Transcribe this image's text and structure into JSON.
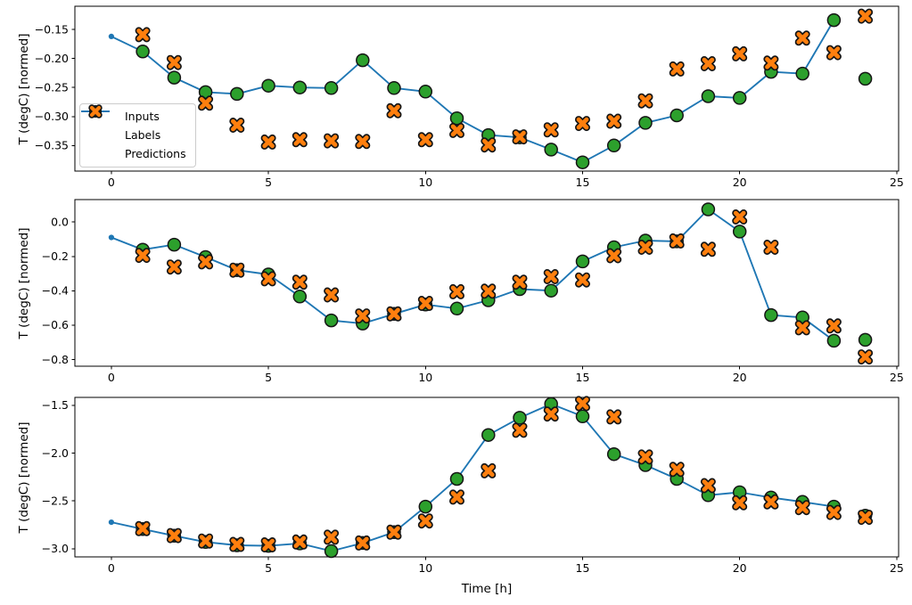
{
  "figure": {
    "background": "#ffffff",
    "xlabel": "Time [h]",
    "xlim": [
      -1.16,
      25.06
    ],
    "x_ticks": [
      0,
      5,
      10,
      15,
      20,
      25
    ],
    "x_tick_labels": [
      "0",
      "5",
      "10",
      "15",
      "20",
      "25"
    ],
    "text_color": "#000000",
    "spine_color": "#000000"
  },
  "legend": {
    "location": "center-left-inside-top-subplot",
    "items": [
      {
        "label": "Inputs",
        "marker": "line-with-dot",
        "color": "#1f77b4"
      },
      {
        "label": "Labels",
        "marker": "filled-circle",
        "color": "#2ca02c",
        "edge_color": "#151515"
      },
      {
        "label": "Predictions",
        "marker": "thick-x",
        "color": "#ff7f0e",
        "edge_color": "#151515"
      }
    ]
  },
  "chart_data": [
    {
      "type": "line",
      "subplot": 1,
      "ylabel": "T (degC) [normed]",
      "ylim": [
        -0.394,
        -0.11
      ],
      "y_ticks": [
        -0.15,
        -0.2,
        -0.25,
        -0.3,
        -0.35
      ],
      "y_tick_labels": [
        "−0.15",
        "−0.20",
        "−0.25",
        "−0.30",
        "−0.35"
      ],
      "series": [
        {
          "name": "Inputs",
          "style": "line+dot",
          "color": "#1f77b4",
          "x": [
            0,
            1,
            2,
            3,
            4,
            5,
            6,
            7,
            8,
            9,
            10,
            11,
            12,
            13,
            14,
            15,
            16,
            17,
            18,
            19,
            20,
            21,
            22,
            23
          ],
          "y": [
            -0.162,
            -0.188,
            -0.233,
            -0.258,
            -0.261,
            -0.247,
            -0.25,
            -0.251,
            -0.203,
            -0.251,
            -0.257,
            -0.303,
            -0.332,
            -0.336,
            -0.357,
            -0.379,
            -0.35,
            -0.311,
            -0.298,
            -0.265,
            -0.268,
            -0.223,
            -0.226,
            -0.134
          ]
        },
        {
          "name": "Labels",
          "style": "scatter-circle",
          "color": "#2ca02c",
          "x": [
            1,
            2,
            3,
            4,
            5,
            6,
            7,
            8,
            9,
            10,
            11,
            12,
            13,
            14,
            15,
            16,
            17,
            18,
            19,
            20,
            21,
            22,
            23,
            24
          ],
          "y": [
            -0.188,
            -0.233,
            -0.258,
            -0.261,
            -0.247,
            -0.25,
            -0.251,
            -0.203,
            -0.251,
            -0.257,
            -0.303,
            -0.332,
            -0.336,
            -0.357,
            -0.379,
            -0.35,
            -0.311,
            -0.298,
            -0.265,
            -0.268,
            -0.223,
            -0.226,
            -0.134,
            -0.235
          ]
        },
        {
          "name": "Predictions",
          "style": "scatter-x",
          "color": "#ff7f0e",
          "x": [
            1,
            2,
            3,
            4,
            5,
            6,
            7,
            8,
            9,
            10,
            11,
            12,
            13,
            14,
            15,
            16,
            17,
            18,
            19,
            20,
            21,
            22,
            23,
            24
          ],
          "y": [
            -0.159,
            -0.207,
            -0.277,
            -0.315,
            -0.344,
            -0.34,
            -0.342,
            -0.343,
            -0.29,
            -0.34,
            -0.324,
            -0.349,
            -0.335,
            -0.323,
            -0.312,
            -0.308,
            -0.273,
            -0.218,
            -0.209,
            -0.192,
            -0.208,
            -0.165,
            -0.19,
            -0.127
          ]
        }
      ]
    },
    {
      "type": "line",
      "subplot": 2,
      "ylabel": "T (degC) [normed]",
      "ylim": [
        -0.838,
        0.13
      ],
      "y_ticks": [
        0.0,
        -0.2,
        -0.4,
        -0.6,
        -0.8
      ],
      "y_tick_labels": [
        "0.0",
        "−0.2",
        "−0.4",
        "−0.6",
        "−0.8"
      ],
      "series": [
        {
          "name": "Inputs",
          "style": "line+dot",
          "color": "#1f77b4",
          "x": [
            0,
            1,
            2,
            3,
            4,
            5,
            6,
            7,
            8,
            9,
            10,
            11,
            12,
            13,
            14,
            15,
            16,
            17,
            18,
            19,
            20,
            21,
            22,
            23
          ],
          "y": [
            -0.09,
            -0.161,
            -0.132,
            -0.204,
            -0.28,
            -0.305,
            -0.433,
            -0.572,
            -0.59,
            -0.534,
            -0.48,
            -0.503,
            -0.455,
            -0.39,
            -0.399,
            -0.229,
            -0.147,
            -0.108,
            -0.113,
            0.073,
            -0.056,
            -0.541,
            -0.555,
            -0.69
          ]
        },
        {
          "name": "Labels",
          "style": "scatter-circle",
          "color": "#2ca02c",
          "x": [
            1,
            2,
            3,
            4,
            5,
            6,
            7,
            8,
            9,
            10,
            11,
            12,
            13,
            14,
            15,
            16,
            17,
            18,
            19,
            20,
            21,
            22,
            23,
            24
          ],
          "y": [
            -0.161,
            -0.132,
            -0.204,
            -0.28,
            -0.305,
            -0.433,
            -0.572,
            -0.59,
            -0.534,
            -0.48,
            -0.503,
            -0.455,
            -0.39,
            -0.399,
            -0.229,
            -0.147,
            -0.108,
            -0.113,
            0.073,
            -0.056,
            -0.541,
            -0.555,
            -0.69,
            -0.685
          ]
        },
        {
          "name": "Predictions",
          "style": "scatter-x",
          "color": "#ff7f0e",
          "x": [
            1,
            2,
            3,
            4,
            5,
            6,
            7,
            8,
            9,
            10,
            11,
            12,
            13,
            14,
            15,
            16,
            17,
            18,
            19,
            20,
            21,
            22,
            23,
            24
          ],
          "y": [
            -0.194,
            -0.262,
            -0.232,
            -0.28,
            -0.33,
            -0.35,
            -0.424,
            -0.546,
            -0.534,
            -0.473,
            -0.405,
            -0.402,
            -0.35,
            -0.318,
            -0.337,
            -0.196,
            -0.147,
            -0.11,
            -0.159,
            0.029,
            -0.147,
            -0.615,
            -0.604,
            -0.784
          ]
        }
      ]
    },
    {
      "type": "line",
      "subplot": 3,
      "ylabel": "T (degC) [normed]",
      "ylim": [
        -3.086,
        -1.416
      ],
      "y_ticks": [
        -1.5,
        -2.0,
        -2.5,
        -3.0
      ],
      "y_tick_labels": [
        "−1.5",
        "−2.0",
        "−2.5",
        "−3.0"
      ],
      "series": [
        {
          "name": "Inputs",
          "style": "line+dot",
          "color": "#1f77b4",
          "x": [
            0,
            1,
            2,
            3,
            4,
            5,
            6,
            7,
            8,
            9,
            10,
            11,
            12,
            13,
            14,
            15,
            16,
            17,
            18,
            19,
            20,
            21,
            22,
            23
          ],
          "y": [
            -2.723,
            -2.795,
            -2.865,
            -2.93,
            -2.965,
            -2.97,
            -2.945,
            -3.025,
            -2.94,
            -2.828,
            -2.56,
            -2.27,
            -1.81,
            -1.63,
            -1.485,
            -1.615,
            -2.01,
            -2.125,
            -2.27,
            -2.44,
            -2.41,
            -2.465,
            -2.51,
            -2.56
          ]
        },
        {
          "name": "Labels",
          "style": "scatter-circle",
          "color": "#2ca02c",
          "x": [
            1,
            2,
            3,
            4,
            5,
            6,
            7,
            8,
            9,
            10,
            11,
            12,
            13,
            14,
            15,
            16,
            17,
            18,
            19,
            20,
            21,
            22,
            23,
            24
          ],
          "y": [
            -2.795,
            -2.865,
            -2.93,
            -2.965,
            -2.97,
            -2.945,
            -3.025,
            -2.94,
            -2.828,
            -2.56,
            -2.27,
            -1.81,
            -1.63,
            -1.485,
            -1.615,
            -2.01,
            -2.125,
            -2.27,
            -2.44,
            -2.41,
            -2.465,
            -2.51,
            -2.56,
            -2.655
          ]
        },
        {
          "name": "Predictions",
          "style": "scatter-x",
          "color": "#ff7f0e",
          "x": [
            1,
            2,
            3,
            4,
            5,
            6,
            7,
            8,
            9,
            10,
            11,
            12,
            13,
            14,
            15,
            16,
            17,
            18,
            19,
            20,
            21,
            22,
            23,
            24
          ],
          "y": [
            -2.79,
            -2.863,
            -2.92,
            -2.955,
            -2.96,
            -2.93,
            -2.88,
            -2.94,
            -2.828,
            -2.71,
            -2.46,
            -2.185,
            -1.76,
            -1.59,
            -1.48,
            -1.62,
            -2.04,
            -2.17,
            -2.34,
            -2.52,
            -2.51,
            -2.57,
            -2.62,
            -2.672
          ]
        }
      ]
    }
  ]
}
